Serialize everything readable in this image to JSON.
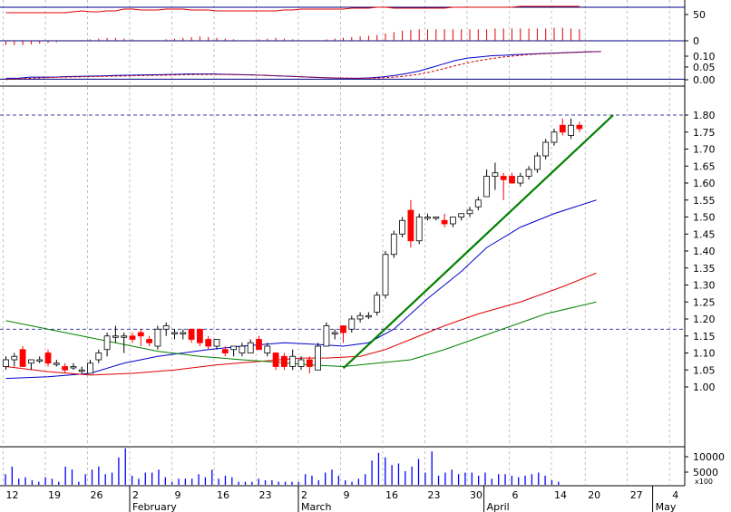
{
  "chart_data": {
    "type": "candlestick",
    "colors": {
      "bull_body": "#ffffff",
      "bear_body": "#ff0000",
      "rsi_line": "#e00000",
      "macd_line": "#0000cc",
      "macd_signal": "#cc0000",
      "ma_short": "#0000cc",
      "ma_mid": "#e00000",
      "ma_long": "#008000",
      "trendline": "#008000",
      "volume_bar": "#0000ff",
      "grid": "#999999",
      "hline": "#000080"
    },
    "x_axis": {
      "day_labels": [
        {
          "i": 0,
          "t": "12"
        },
        {
          "i": 5,
          "t": "19"
        },
        {
          "i": 10,
          "t": "26"
        },
        {
          "i": 15,
          "t": "2"
        },
        {
          "i": 20,
          "t": "9"
        },
        {
          "i": 25,
          "t": "16"
        },
        {
          "i": 30,
          "t": "23"
        },
        {
          "i": 35,
          "t": "2"
        },
        {
          "i": 40,
          "t": "9"
        },
        {
          "i": 45,
          "t": "16"
        },
        {
          "i": 50,
          "t": "23"
        },
        {
          "i": 55,
          "t": "30"
        },
        {
          "i": 60,
          "t": "6"
        },
        {
          "i": 65,
          "t": "14"
        },
        {
          "i": 69,
          "t": "20"
        },
        {
          "i": 74,
          "t": "27"
        },
        {
          "i": 79,
          "t": "4"
        }
      ],
      "month_labels": [
        {
          "i": 15,
          "t": "February"
        },
        {
          "i": 35,
          "t": "March"
        },
        {
          "i": 57,
          "t": "April"
        },
        {
          "i": 77,
          "t": "May"
        }
      ]
    },
    "price_panel": {
      "ticks": [
        "1.80",
        "1.75",
        "1.70",
        "1.65",
        "1.60",
        "1.55",
        "1.50",
        "1.45",
        "1.40",
        "1.35",
        "1.30",
        "1.25",
        "1.20",
        "1.15",
        "1.10",
        "1.05",
        "1.00"
      ],
      "range": [
        0.96,
        1.83
      ],
      "dashed_levels": [
        1.8,
        1.17
      ],
      "candles": [
        [
          1.06,
          1.09,
          1.05,
          1.08
        ],
        [
          1.08,
          1.1,
          1.06,
          1.09
        ],
        [
          1.11,
          1.12,
          1.06,
          1.06
        ],
        [
          1.07,
          1.08,
          1.05,
          1.08
        ],
        [
          1.08,
          1.09,
          1.07,
          1.08
        ],
        [
          1.1,
          1.11,
          1.06,
          1.07
        ],
        [
          1.07,
          1.08,
          1.06,
          1.07
        ],
        [
          1.06,
          1.07,
          1.04,
          1.05
        ],
        [
          1.06,
          1.07,
          1.05,
          1.06
        ],
        [
          1.05,
          1.06,
          1.04,
          1.05
        ],
        [
          1.04,
          1.08,
          1.04,
          1.07
        ],
        [
          1.08,
          1.11,
          1.07,
          1.1
        ],
        [
          1.11,
          1.16,
          1.09,
          1.15
        ],
        [
          1.15,
          1.18,
          1.13,
          1.15
        ],
        [
          1.15,
          1.16,
          1.1,
          1.15
        ],
        [
          1.15,
          1.16,
          1.13,
          1.14
        ],
        [
          1.16,
          1.17,
          1.12,
          1.15
        ],
        [
          1.14,
          1.15,
          1.12,
          1.13
        ],
        [
          1.12,
          1.18,
          1.11,
          1.17
        ],
        [
          1.17,
          1.19,
          1.15,
          1.18
        ],
        [
          1.16,
          1.17,
          1.14,
          1.16
        ],
        [
          1.16,
          1.17,
          1.14,
          1.16
        ],
        [
          1.17,
          1.17,
          1.13,
          1.14
        ],
        [
          1.17,
          1.17,
          1.12,
          1.13
        ],
        [
          1.14,
          1.15,
          1.11,
          1.12
        ],
        [
          1.12,
          1.14,
          1.11,
          1.14
        ],
        [
          1.11,
          1.12,
          1.09,
          1.1
        ],
        [
          1.11,
          1.12,
          1.09,
          1.12
        ],
        [
          1.1,
          1.13,
          1.09,
          1.12
        ],
        [
          1.1,
          1.14,
          1.1,
          1.13
        ],
        [
          1.14,
          1.15,
          1.11,
          1.11
        ],
        [
          1.1,
          1.13,
          1.09,
          1.12
        ],
        [
          1.1,
          1.1,
          1.05,
          1.06
        ],
        [
          1.09,
          1.1,
          1.05,
          1.06
        ],
        [
          1.06,
          1.11,
          1.05,
          1.09
        ],
        [
          1.06,
          1.09,
          1.05,
          1.08
        ],
        [
          1.08,
          1.09,
          1.04,
          1.06
        ],
        [
          1.05,
          1.13,
          1.05,
          1.12
        ],
        [
          1.12,
          1.19,
          1.12,
          1.18
        ],
        [
          1.16,
          1.17,
          1.14,
          1.16
        ],
        [
          1.18,
          1.18,
          1.13,
          1.16
        ],
        [
          1.17,
          1.21,
          1.16,
          1.2
        ],
        [
          1.2,
          1.22,
          1.19,
          1.21
        ],
        [
          1.21,
          1.22,
          1.2,
          1.21
        ],
        [
          1.22,
          1.28,
          1.21,
          1.27
        ],
        [
          1.27,
          1.4,
          1.26,
          1.39
        ],
        [
          1.39,
          1.46,
          1.38,
          1.45
        ],
        [
          1.45,
          1.5,
          1.44,
          1.49
        ],
        [
          1.52,
          1.55,
          1.41,
          1.43
        ],
        [
          1.43,
          1.51,
          1.42,
          1.5
        ],
        [
          1.5,
          1.51,
          1.49,
          1.5
        ],
        [
          1.5,
          1.5,
          1.49,
          1.5
        ],
        [
          1.49,
          1.51,
          1.47,
          1.48
        ],
        [
          1.48,
          1.5,
          1.47,
          1.5
        ],
        [
          1.5,
          1.51,
          1.49,
          1.51
        ],
        [
          1.51,
          1.53,
          1.5,
          1.52
        ],
        [
          1.53,
          1.56,
          1.52,
          1.55
        ],
        [
          1.56,
          1.64,
          1.56,
          1.62
        ],
        [
          1.62,
          1.66,
          1.58,
          1.63
        ],
        [
          1.62,
          1.63,
          1.55,
          1.61
        ],
        [
          1.62,
          1.63,
          1.6,
          1.6
        ],
        [
          1.6,
          1.63,
          1.59,
          1.62
        ],
        [
          1.62,
          1.65,
          1.61,
          1.64
        ],
        [
          1.64,
          1.69,
          1.63,
          1.68
        ],
        [
          1.68,
          1.73,
          1.67,
          1.72
        ],
        [
          1.72,
          1.76,
          1.71,
          1.75
        ],
        [
          1.77,
          1.79,
          1.74,
          1.75
        ],
        [
          1.74,
          1.79,
          1.73,
          1.77
        ],
        [
          1.77,
          1.78,
          1.75,
          1.76
        ]
      ],
      "moving_averages": [
        {
          "name": "ma_short",
          "points": [
            [
              0,
              1.025
            ],
            [
              5,
              1.03
            ],
            [
              10,
              1.04
            ],
            [
              14,
              1.07
            ],
            [
              18,
              1.09
            ],
            [
              24,
              1.11
            ],
            [
              28,
              1.12
            ],
            [
              33,
              1.13
            ],
            [
              37,
              1.125
            ],
            [
              40,
              1.12
            ],
            [
              43,
              1.13
            ],
            [
              46,
              1.17
            ],
            [
              50,
              1.26
            ],
            [
              54,
              1.34
            ],
            [
              57,
              1.41
            ],
            [
              61,
              1.47
            ],
            [
              65,
              1.51
            ],
            [
              70,
              1.55
            ]
          ]
        },
        {
          "name": "ma_mid",
          "points": [
            [
              0,
              1.06
            ],
            [
              5,
              1.045
            ],
            [
              10,
              1.035
            ],
            [
              15,
              1.04
            ],
            [
              20,
              1.05
            ],
            [
              25,
              1.065
            ],
            [
              30,
              1.075
            ],
            [
              35,
              1.085
            ],
            [
              38,
              1.085
            ],
            [
              42,
              1.09
            ],
            [
              45,
              1.11
            ],
            [
              48,
              1.14
            ],
            [
              52,
              1.18
            ],
            [
              56,
              1.215
            ],
            [
              61,
              1.25
            ],
            [
              66,
              1.295
            ],
            [
              70,
              1.335
            ]
          ]
        },
        {
          "name": "ma_long",
          "points": [
            [
              0,
              1.195
            ],
            [
              4,
              1.175
            ],
            [
              9,
              1.15
            ],
            [
              13,
              1.13
            ],
            [
              18,
              1.105
            ],
            [
              23,
              1.09
            ],
            [
              28,
              1.08
            ],
            [
              32,
              1.073
            ],
            [
              36,
              1.065
            ],
            [
              40,
              1.06
            ],
            [
              44,
              1.07
            ],
            [
              48,
              1.08
            ],
            [
              52,
              1.11
            ],
            [
              56,
              1.145
            ],
            [
              60,
              1.18
            ],
            [
              64,
              1.215
            ],
            [
              70,
              1.25
            ]
          ]
        }
      ],
      "trendline": [
        [
          40,
          1.055
        ],
        [
          72,
          1.8
        ]
      ]
    },
    "rsi_panel": {
      "ticks": [
        "50"
      ],
      "range": [
        40,
        80
      ],
      "level": 70,
      "values": [
        66,
        66,
        66,
        66,
        66,
        66,
        66,
        66,
        67,
        68,
        67,
        67,
        68,
        68,
        70,
        70,
        69,
        69,
        69,
        70,
        70,
        70,
        69,
        69,
        69,
        68,
        68,
        68,
        68,
        68,
        68,
        68,
        68,
        69,
        69,
        70,
        70,
        70,
        70,
        70,
        70,
        71,
        71,
        71,
        72,
        72,
        71,
        71,
        71,
        71,
        71,
        71,
        71,
        72,
        72,
        72,
        72,
        72,
        72,
        72,
        72,
        73,
        73,
        73,
        73,
        73,
        73,
        73,
        73
      ]
    },
    "histogram_panel": {
      "ticks": [
        "0"
      ],
      "range": [
        -1,
        1
      ],
      "values": [
        -0.3,
        -0.3,
        -0.3,
        -0.25,
        -0.2,
        -0.15,
        -0.1,
        -0.05,
        0,
        0.05,
        0.1,
        0.15,
        0.2,
        0.2,
        0.15,
        0.1,
        0.05,
        0,
        0.05,
        0.1,
        0.15,
        0.2,
        0.25,
        0.3,
        0.25,
        0.2,
        0.15,
        0.1,
        0.05,
        0,
        0.1,
        0.15,
        0.2,
        0.15,
        0.1,
        0.05,
        0,
        0.05,
        0.1,
        0.15,
        0.2,
        0.25,
        0.3,
        0.35,
        0.4,
        0.5,
        0.6,
        0.7,
        0.75,
        0.8,
        0.8,
        0.8,
        0.8,
        0.8,
        0.8,
        0.8,
        0.8,
        0.8,
        0.85,
        0.85,
        0.85,
        0.85,
        0.85,
        0.85,
        0.85,
        0.9,
        0.9,
        0.85,
        0.8
      ]
    },
    "macd_panel": {
      "ticks": [
        "0.10",
        "0.05",
        "0.00"
      ],
      "range": [
        -0.01,
        0.12
      ],
      "macd": [
        0,
        0,
        0.005,
        0.005,
        0.005,
        0.007,
        0.008,
        0.009,
        0.01,
        0.012,
        0.013,
        0.014,
        0.015,
        0.016,
        0.017,
        0.018,
        0.018,
        0.018,
        0.017,
        0.016,
        0.015,
        0.013,
        0.011,
        0.009,
        0.007,
        0.005,
        0.003,
        0.001,
        0,
        0,
        0.002,
        0.006,
        0.012,
        0.02,
        0.03,
        0.045,
        0.06,
        0.075,
        0.085,
        0.09,
        0.095,
        0.097,
        0.1,
        0.102,
        0.104,
        0.106,
        0.108,
        0.11,
        0.112,
        0.113
      ],
      "signal": [
        -0.005,
        -0.003,
        0,
        0.002,
        0.004,
        0.005,
        0.006,
        0.007,
        0.008,
        0.009,
        0.01,
        0.011,
        0.012,
        0.013,
        0.014,
        0.015,
        0.016,
        0.016,
        0.016,
        0.015,
        0.014,
        0.013,
        0.011,
        0.009,
        0.007,
        0.005,
        0.003,
        0.002,
        0.001,
        0,
        0,
        0.002,
        0.005,
        0.01,
        0.017,
        0.027,
        0.04,
        0.053,
        0.065,
        0.075,
        0.083,
        0.09,
        0.095,
        0.1,
        0.103,
        0.105,
        0.107,
        0.109,
        0.111,
        0.113
      ]
    },
    "volume_panel": {
      "ticks": [
        "10000",
        "5000"
      ],
      "unit_label": "x100",
      "range": [
        0,
        12500
      ],
      "values": [
        3500,
        6000,
        2000,
        2500,
        1500,
        1000,
        2500,
        2000,
        1000,
        6000,
        5000,
        1000,
        3500,
        5000,
        6000,
        3500,
        4000,
        9000,
        12000,
        3000,
        2000,
        4000,
        4000,
        5000,
        2500,
        1000,
        2000,
        2000,
        2000,
        3500,
        2500,
        5000,
        2000,
        3000,
        2500,
        1000,
        1000,
        1000,
        2000,
        1500,
        1500,
        1000,
        1000,
        1000,
        1000,
        3500,
        3000,
        1500,
        4000,
        5000,
        3000,
        1500,
        1000,
        2000,
        3500,
        8000,
        10500,
        9000,
        6500,
        7000,
        4500,
        6000,
        8500,
        4000,
        11000,
        3000,
        4000,
        5000,
        3500,
        4000,
        4000,
        3000,
        4000,
        2000,
        3500,
        3500,
        3000,
        2500,
        3000,
        3500,
        4000,
        3000,
        1500,
        1000
      ]
    }
  }
}
